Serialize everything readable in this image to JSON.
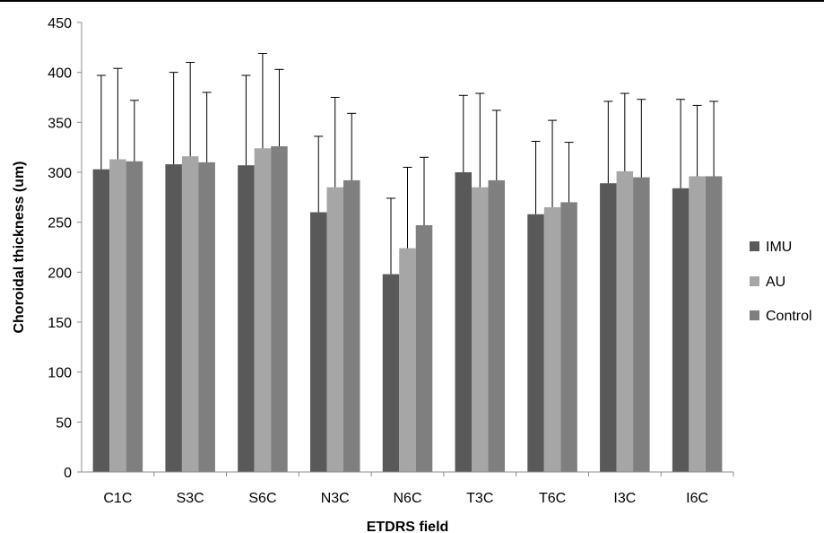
{
  "chart_data": {
    "type": "bar",
    "title": "",
    "xlabel": "ETDRS field",
    "ylabel": "Choroidal thickness (um)",
    "ylim": [
      0,
      450
    ],
    "yticks": [
      0,
      50,
      100,
      150,
      200,
      250,
      300,
      350,
      400,
      450
    ],
    "grid": false,
    "legend_position": "right",
    "categories": [
      "C1C",
      "S3C",
      "S6C",
      "N3C",
      "N6C",
      "T3C",
      "T6C",
      "I3C",
      "I6C"
    ],
    "series": [
      {
        "name": "IMU",
        "color": "#595959",
        "values": [
          303,
          308,
          307,
          260,
          198,
          300,
          258,
          289,
          284
        ],
        "error_plus": [
          94,
          92,
          90,
          76,
          76,
          77,
          73,
          82,
          89
        ]
      },
      {
        "name": "AU",
        "color": "#a6a6a6",
        "values": [
          313,
          316,
          324,
          285,
          224,
          285,
          265,
          301,
          296
        ],
        "error_plus": [
          91,
          94,
          95,
          90,
          81,
          94,
          87,
          78,
          71
        ]
      },
      {
        "name": "Control",
        "color": "#7f7f7f",
        "values": [
          311,
          310,
          326,
          292,
          247,
          292,
          270,
          295,
          296
        ],
        "error_plus": [
          61,
          70,
          77,
          67,
          68,
          70,
          60,
          78,
          75
        ]
      }
    ]
  }
}
